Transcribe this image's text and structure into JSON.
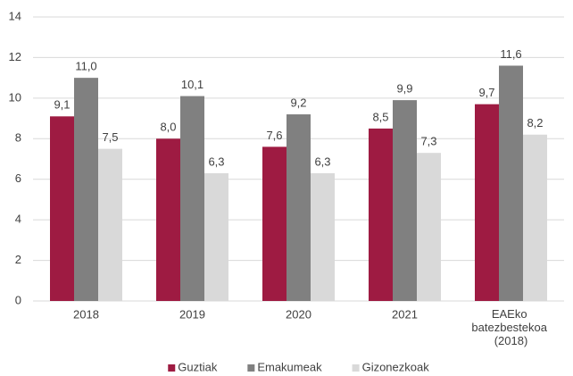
{
  "chart_data": {
    "type": "bar",
    "categories": [
      "2018",
      "2019",
      "2020",
      "2021",
      "EAEko batezbestekoa (2018)"
    ],
    "series": [
      {
        "name": "Guztiak",
        "color": "#9e1b42",
        "values": [
          9.1,
          8.0,
          7.6,
          8.5,
          9.7
        ],
        "value_labels": [
          "9,1",
          "8,0",
          "7,6",
          "8,5",
          "9,7"
        ]
      },
      {
        "name": "Emakumeak",
        "color": "#808080",
        "values": [
          11.0,
          10.1,
          9.2,
          9.9,
          11.6
        ],
        "value_labels": [
          "11,0",
          "10,1",
          "9,2",
          "9,9",
          "11,6"
        ]
      },
      {
        "name": "Gizonezkoak",
        "color": "#d9d9d9",
        "values": [
          7.5,
          6.3,
          6.3,
          7.3,
          8.2
        ],
        "value_labels": [
          "7,5",
          "6,3",
          "6,3",
          "7,3",
          "8,2"
        ]
      }
    ],
    "ylim": [
      0,
      14
    ],
    "yticks": [
      0,
      2,
      4,
      6,
      8,
      10,
      12,
      14
    ],
    "grid": true,
    "legend": "bottom"
  }
}
